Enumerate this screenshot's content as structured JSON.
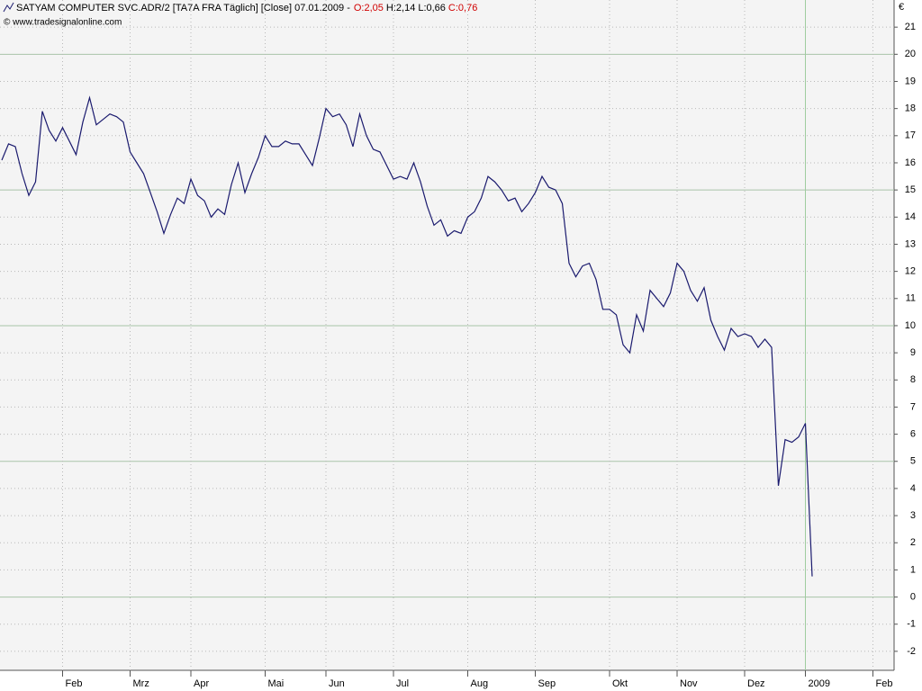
{
  "chart_data": {
    "type": "line",
    "title": "SATYAM COMPUTER SVC.ADR/2 [TA7A FRA  Täglich] [Close] 07.01.2009 -",
    "quote": [
      {
        "text": "O:2,05",
        "color": "#d00000"
      },
      {
        "text": "H:2,14",
        "color": "#000000"
      },
      {
        "text": "L:0,66",
        "color": "#000000"
      },
      {
        "text": "C:0,76",
        "color": "#d00000"
      }
    ],
    "source": "© www.tradesignalonline.com",
    "y_unit": "€",
    "color": "#1a1a6e",
    "grid": true,
    "categories": [
      null,
      null,
      null,
      null,
      null,
      null,
      null,
      null,
      null,
      "Feb",
      null,
      null,
      null,
      null,
      null,
      null,
      null,
      null,
      null,
      "Mrz",
      null,
      null,
      null,
      null,
      null,
      null,
      null,
      null,
      "Apr",
      null,
      null,
      null,
      null,
      null,
      null,
      null,
      null,
      null,
      null,
      "Mai",
      null,
      null,
      null,
      null,
      null,
      null,
      null,
      null,
      "Jun",
      null,
      null,
      null,
      null,
      null,
      null,
      null,
      null,
      null,
      "Jul",
      null,
      null,
      null,
      null,
      null,
      null,
      null,
      null,
      null,
      null,
      "Aug",
      null,
      null,
      null,
      null,
      null,
      null,
      null,
      null,
      null,
      "Sep",
      null,
      null,
      null,
      null,
      null,
      null,
      null,
      null,
      null,
      null,
      "Okt",
      null,
      null,
      null,
      null,
      null,
      null,
      null,
      null,
      null,
      "Nov",
      null,
      null,
      null,
      null,
      null,
      null,
      null,
      null,
      null,
      "Dez",
      null,
      null,
      null,
      null,
      null,
      null,
      null,
      null,
      "2009",
      null,
      null,
      null,
      null,
      null,
      null,
      null,
      null,
      null,
      "Feb",
      null,
      null
    ],
    "values": [
      16.1,
      16.7,
      16.6,
      15.6,
      14.8,
      15.3,
      17.9,
      17.2,
      16.8,
      17.3,
      16.8,
      16.3,
      17.5,
      18.4,
      17.4,
      17.6,
      17.8,
      17.7,
      17.5,
      16.4,
      16.0,
      15.6,
      14.9,
      14.2,
      13.4,
      14.1,
      14.7,
      14.5,
      15.4,
      14.8,
      14.6,
      14.0,
      14.3,
      14.1,
      15.2,
      16.0,
      14.9,
      15.6,
      16.2,
      17.0,
      16.6,
      16.6,
      16.8,
      16.7,
      16.7,
      16.3,
      15.9,
      16.9,
      18.0,
      17.7,
      17.8,
      17.4,
      16.6,
      17.8,
      17.0,
      16.5,
      16.4,
      15.9,
      15.4,
      15.5,
      15.4,
      16.0,
      15.3,
      14.4,
      13.7,
      13.9,
      13.3,
      13.5,
      13.4,
      14.0,
      14.2,
      14.7,
      15.5,
      15.3,
      15.0,
      14.6,
      14.7,
      14.2,
      14.5,
      14.9,
      15.5,
      15.1,
      15.0,
      14.5,
      12.3,
      11.8,
      12.2,
      12.3,
      11.7,
      10.6,
      10.6,
      10.4,
      9.3,
      9.0,
      10.4,
      9.8,
      11.3,
      11.0,
      10.7,
      11.2,
      12.3,
      12.0,
      11.3,
      10.9,
      11.4,
      10.2,
      9.6,
      9.1,
      9.9,
      9.6,
      9.7,
      9.6,
      9.2,
      9.5,
      9.2,
      4.1,
      5.8,
      5.7,
      5.9,
      6.4,
      0.76,
      null,
      null,
      null,
      null,
      null,
      null,
      null,
      null,
      null,
      null,
      null
    ],
    "ylim": [
      -2.7,
      22
    ],
    "yticks": [
      -2,
      -1,
      0,
      1,
      2,
      3,
      4,
      5,
      6,
      7,
      8,
      9,
      10,
      11,
      12,
      13,
      14,
      15,
      16,
      17,
      18,
      19,
      20,
      21
    ]
  }
}
